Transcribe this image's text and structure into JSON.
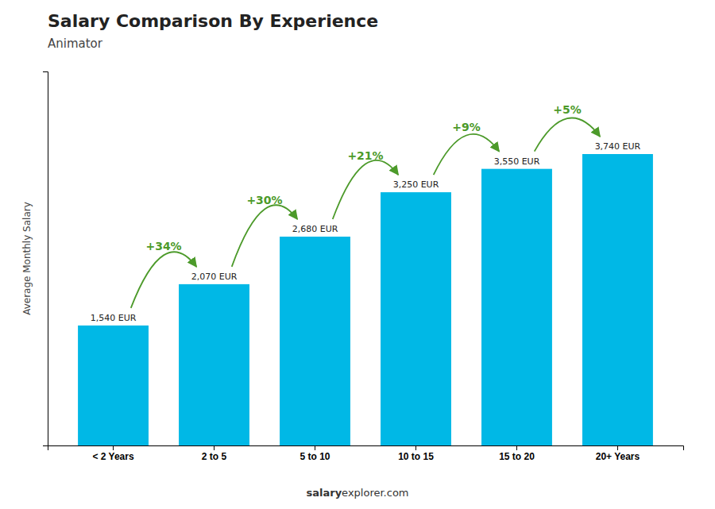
{
  "chart_data": {
    "type": "bar",
    "title": "Salary Comparison By Experience",
    "subtitle": "Animator",
    "y_label": "Average Monthly Salary",
    "categories": [
      "< 2 Years",
      "2 to 5",
      "5 to 10",
      "10 to 15",
      "15 to 20",
      "20+ Years"
    ],
    "values": [
      1540,
      2070,
      2680,
      3250,
      3550,
      3740
    ],
    "value_labels": [
      "1,540 EUR",
      "2,070 EUR",
      "2,680 EUR",
      "3,250 EUR",
      "3,550 EUR",
      "3,740 EUR"
    ],
    "data_labels": true,
    "annotations": [
      "+34%",
      "+30%",
      "+21%",
      "+9%",
      "+5%"
    ],
    "footer": [
      "salary",
      "explorer.com"
    ],
    "color": "#00b8e6",
    "ylim": [
      0,
      4800
    ],
    "tick_labels": "x",
    "grid": false
  }
}
